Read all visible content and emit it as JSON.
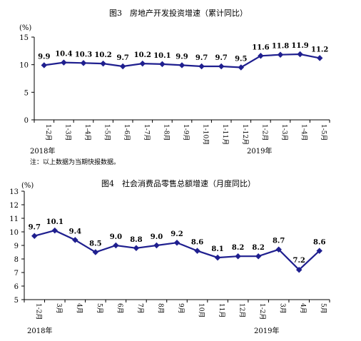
{
  "chart_data": [
    {
      "type": "line",
      "title": "图3　房地产开发投资增速（累计同比）",
      "ylabel": "(%)",
      "ylim": [
        0,
        15
      ],
      "yticks": [
        0,
        5,
        10,
        15
      ],
      "grid": false,
      "categories": [
        "1-2月",
        "1-3月",
        "1-4月",
        "1-5月",
        "1-6月",
        "1-7月",
        "1-8月",
        "1-9月",
        "1-10月",
        "1-11月",
        "1-12月",
        "1-2月",
        "1-3月",
        "1-4月",
        "1-5月"
      ],
      "values": [
        9.9,
        10.4,
        10.3,
        10.2,
        9.7,
        10.2,
        10.1,
        9.9,
        9.7,
        9.7,
        9.5,
        11.6,
        11.8,
        11.9,
        11.2
      ],
      "year_labels": [
        "2018年",
        "2019年"
      ],
      "note": "注：以上数据为当期快报数据。"
    },
    {
      "type": "line",
      "title": "图4　社会消费品零售总额增速（月度同比）",
      "ylabel": "(%)",
      "ylim": [
        5,
        13
      ],
      "yticks": [
        5,
        6,
        7,
        8,
        9,
        10,
        11,
        12,
        13
      ],
      "grid": false,
      "categories": [
        "1-2月",
        "3月",
        "4月",
        "5月",
        "6月",
        "7月",
        "8月",
        "9月",
        "10月",
        "11月",
        "12月",
        "1-2月",
        "3月",
        "4月",
        "5月"
      ],
      "values": [
        9.7,
        10.1,
        9.4,
        8.5,
        9.0,
        8.8,
        9.0,
        9.2,
        8.6,
        8.1,
        8.2,
        8.2,
        8.7,
        7.2,
        8.6
      ],
      "year_labels": [
        "2018年",
        "2019年"
      ]
    }
  ],
  "colors": {
    "line": "#1f1f8f",
    "axis": "#000000"
  }
}
